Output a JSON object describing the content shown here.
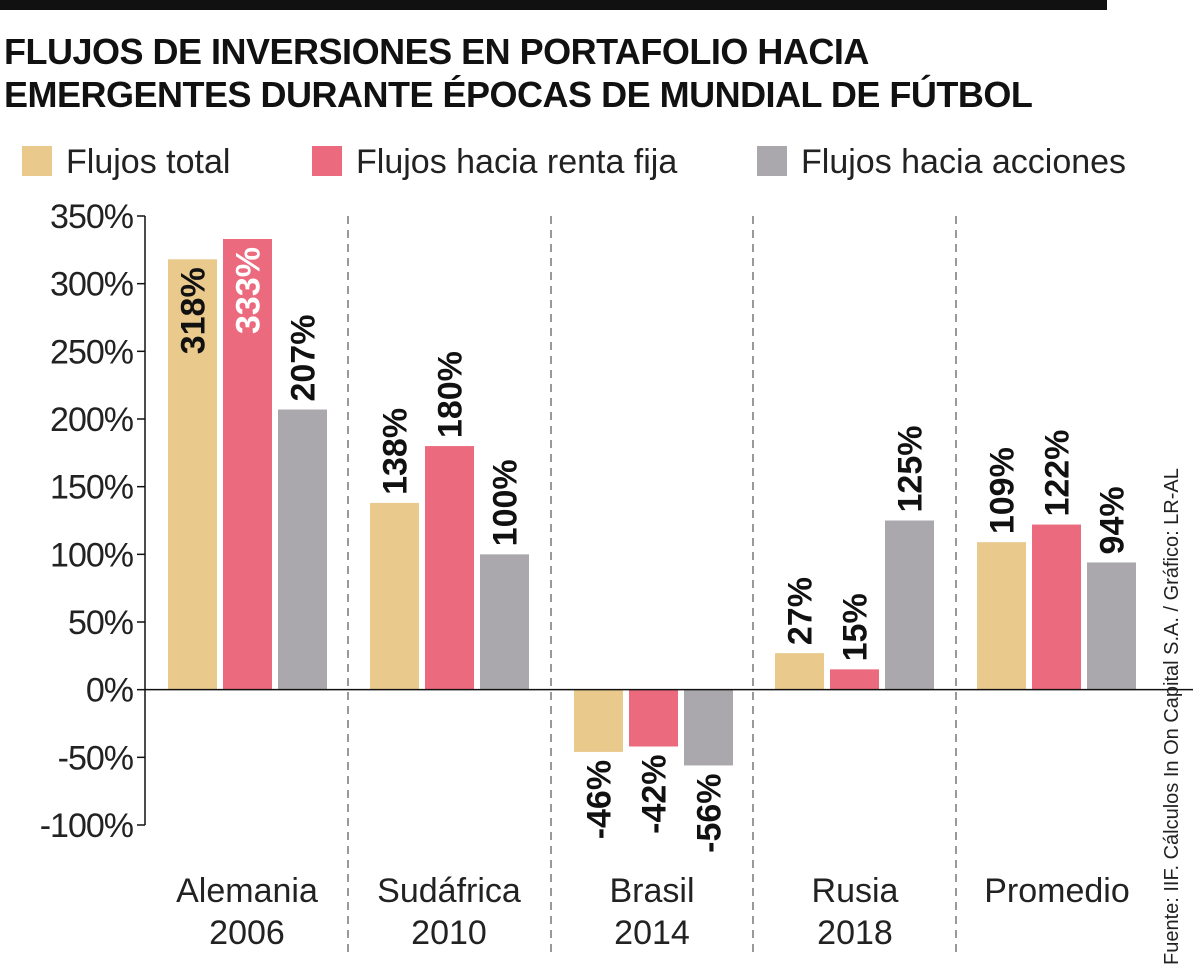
{
  "title": {
    "line1": "FLUJOS DE INVERSIONES EN PORTAFOLIO HACIA",
    "line2": "EMERGENTES DURANTE ÉPOCAS DE MUNDIAL DE FÚTBOL"
  },
  "colors": {
    "total": "#E9CA8C",
    "renta_fija": "#EB6A7E",
    "acciones": "#AAA8AD",
    "axis": "#111111",
    "label_light": "#ffffff",
    "label_dark": "#111111"
  },
  "legend": [
    {
      "key": "total",
      "label": "Flujos total"
    },
    {
      "key": "renta_fija",
      "label": "Flujos hacia renta fija"
    },
    {
      "key": "acciones",
      "label": "Flujos hacia acciones"
    }
  ],
  "source": "Fuente: IIF. Cálculos In On Capital S.A. / Gráfico: LR-AL",
  "chart_data": {
    "type": "bar",
    "title": "FLUJOS DE INVERSIONES EN PORTAFOLIO HACIA EMERGENTES DURANTE ÉPOCAS DE MUNDIAL DE FÚTBOL",
    "categories": [
      {
        "line1": "Alemania",
        "line2": "2006"
      },
      {
        "line1": "Sudáfrica",
        "line2": "2010"
      },
      {
        "line1": "Brasil",
        "line2": "2014"
      },
      {
        "line1": "Rusia",
        "line2": "2018"
      },
      {
        "line1": "Promedio",
        "line2": ""
      }
    ],
    "series": [
      {
        "key": "total",
        "name": "Flujos total",
        "values": [
          318,
          138,
          -46,
          27,
          109
        ],
        "labels": [
          "318%",
          "138%",
          "-46%",
          "27%",
          "109%"
        ]
      },
      {
        "key": "renta_fija",
        "name": "Flujos hacia renta fija",
        "values": [
          333,
          180,
          -42,
          15,
          122
        ],
        "labels": [
          "333%",
          "180%",
          "-42%",
          "15%",
          "122%"
        ]
      },
      {
        "key": "acciones",
        "name": "Flujos hacia acciones",
        "values": [
          207,
          100,
          -56,
          125,
          94
        ],
        "labels": [
          "207%",
          "100%",
          "-56%",
          "125%",
          "94%"
        ]
      }
    ],
    "yticks": [
      350,
      300,
      250,
      200,
      150,
      100,
      50,
      0,
      -50,
      -100
    ],
    "ytick_labels": [
      "350%",
      "300%",
      "250%",
      "200%",
      "150%",
      "100%",
      "50%",
      "0%",
      "-50%",
      "-100%"
    ],
    "ylim": [
      -100,
      350
    ],
    "xlabel": "",
    "ylabel": "",
    "grid": false,
    "legend_position": "top"
  }
}
